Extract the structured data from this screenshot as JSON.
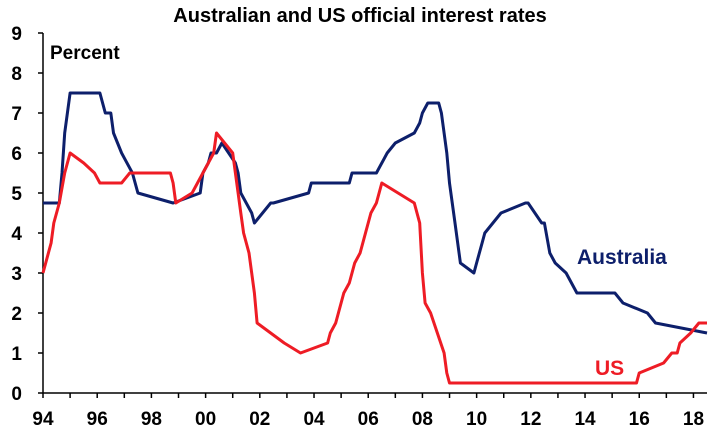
{
  "chart_data": {
    "type": "line",
    "title": "Australian and US official interest rates",
    "ylabel": "Percent",
    "xlim": [
      1994,
      2018.5
    ],
    "ylim": [
      0,
      9
    ],
    "x_ticks": [
      1994,
      1996,
      1998,
      2000,
      2002,
      2004,
      2006,
      2008,
      2010,
      2012,
      2014,
      2016,
      2018
    ],
    "x_tick_labels": [
      "94",
      "96",
      "98",
      "00",
      "02",
      "04",
      "06",
      "08",
      "10",
      "12",
      "14",
      "16",
      "18"
    ],
    "y_ticks": [
      0,
      1,
      2,
      3,
      4,
      5,
      6,
      7,
      8,
      9
    ],
    "y_tick_labels": [
      "0",
      "1",
      "2",
      "3",
      "4",
      "5",
      "6",
      "7",
      "8",
      "9"
    ],
    "grid": false,
    "series": [
      {
        "name": "Australia",
        "color": "#0d1f6b",
        "x": [
          1994.0,
          1994.6,
          1994.7,
          1994.8,
          1994.9,
          1995.0,
          1996.1,
          1996.3,
          1996.5,
          1996.6,
          1996.9,
          1997.3,
          1997.5,
          1998.8,
          1999.8,
          1999.9,
          2000.1,
          2000.2,
          2000.4,
          2000.6,
          2001.1,
          2001.2,
          2001.3,
          2001.7,
          2001.8,
          2002.4,
          2002.5,
          2003.8,
          2003.9,
          2005.3,
          2005.4,
          2006.3,
          2006.5,
          2006.7,
          2007.0,
          2007.7,
          2007.9,
          2008.0,
          2008.2,
          2008.6,
          2008.7,
          2008.9,
          2009.0,
          2009.2,
          2009.4,
          2009.9,
          2010.0,
          2010.2,
          2010.3,
          2010.9,
          2011.8,
          2011.9,
          2012.4,
          2012.5,
          2012.7,
          2012.9,
          2013.3,
          2013.5,
          2013.7,
          2015.1,
          2015.4,
          2016.3,
          2016.6,
          2018.5
        ],
        "y": [
          4.75,
          4.75,
          5.5,
          6.5,
          7.0,
          7.5,
          7.5,
          7.0,
          7.0,
          6.5,
          6.0,
          5.5,
          5.0,
          4.75,
          5.0,
          5.5,
          5.75,
          6.0,
          6.0,
          6.25,
          5.75,
          5.5,
          5.0,
          4.5,
          4.25,
          4.75,
          4.75,
          5.0,
          5.25,
          5.25,
          5.5,
          5.5,
          5.75,
          6.0,
          6.25,
          6.5,
          6.75,
          7.0,
          7.25,
          7.25,
          7.0,
          6.0,
          5.25,
          4.25,
          3.25,
          3.0,
          3.25,
          3.75,
          4.0,
          4.5,
          4.75,
          4.75,
          4.25,
          4.25,
          3.5,
          3.25,
          3.0,
          2.75,
          2.5,
          2.5,
          2.25,
          2.0,
          1.75,
          1.5
        ]
      },
      {
        "name": "US",
        "color": "#ee1c25",
        "x": [
          1994.0,
          1994.1,
          1994.3,
          1994.4,
          1994.6,
          1994.8,
          1995.0,
          1995.5,
          1995.9,
          1996.1,
          1996.9,
          1997.2,
          1998.7,
          1998.8,
          1998.9,
          1999.5,
          1999.7,
          1999.9,
          2000.1,
          2000.3,
          2000.4,
          2001.0,
          2001.1,
          2001.2,
          2001.3,
          2001.4,
          2001.5,
          2001.6,
          2001.7,
          2001.8,
          2001.9,
          2002.9,
          2003.5,
          2004.5,
          2004.6,
          2004.8,
          2004.9,
          2005.1,
          2005.3,
          2005.5,
          2005.7,
          2005.9,
          2006.1,
          2006.3,
          2006.5,
          2007.7,
          2007.8,
          2007.9,
          2008.0,
          2008.1,
          2008.3,
          2008.8,
          2008.9,
          2009.0,
          2015.9,
          2016.0,
          2016.9,
          2017.2,
          2017.4,
          2017.5,
          2017.9,
          2018.2,
          2018.5
        ],
        "y": [
          3.0,
          3.25,
          3.75,
          4.25,
          4.75,
          5.5,
          6.0,
          5.75,
          5.5,
          5.25,
          5.25,
          5.5,
          5.5,
          5.25,
          4.75,
          5.0,
          5.25,
          5.5,
          5.75,
          6.0,
          6.5,
          6.0,
          5.5,
          5.0,
          4.5,
          4.0,
          3.75,
          3.5,
          3.0,
          2.5,
          1.75,
          1.25,
          1.0,
          1.25,
          1.5,
          1.75,
          2.0,
          2.5,
          2.75,
          3.25,
          3.5,
          4.0,
          4.5,
          4.75,
          5.25,
          4.75,
          4.5,
          4.25,
          3.0,
          2.25,
          2.0,
          1.0,
          0.5,
          0.25,
          0.25,
          0.5,
          0.75,
          1.0,
          1.0,
          1.25,
          1.5,
          1.75,
          1.75
        ]
      }
    ]
  }
}
